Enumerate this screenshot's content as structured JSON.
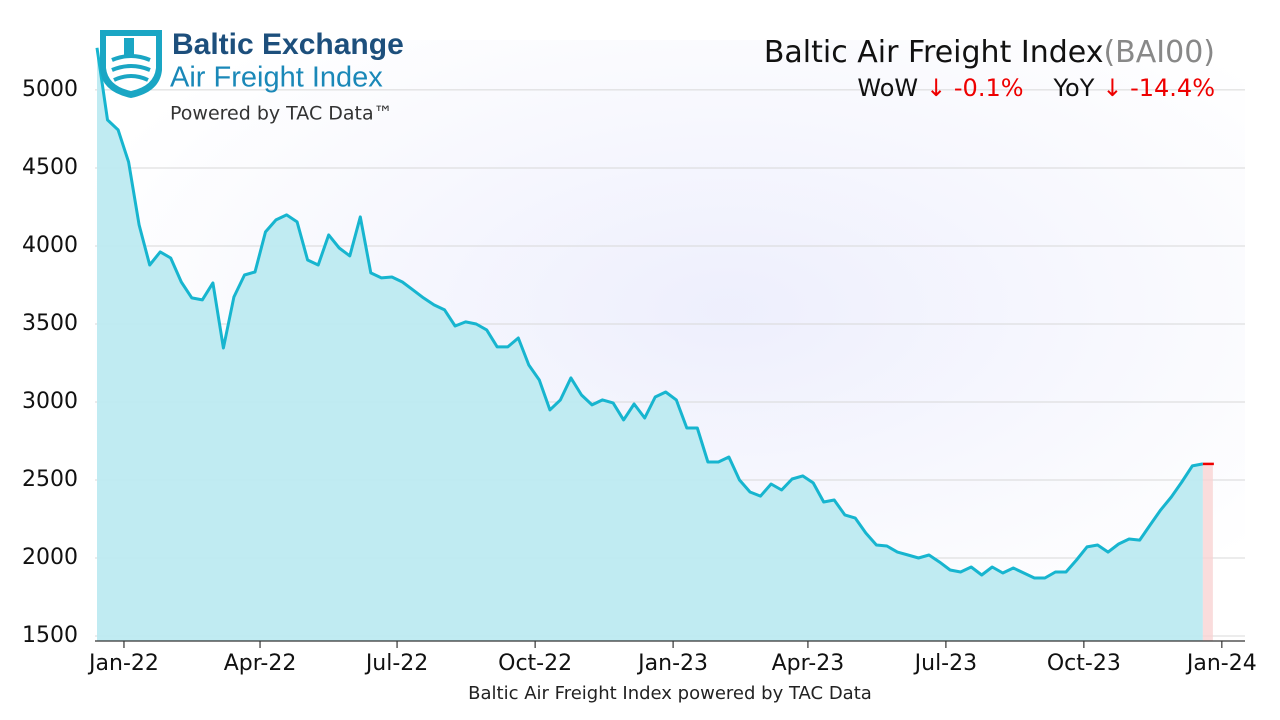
{
  "chart_data": {
    "type": "area",
    "logo_title": "Baltic Exchange",
    "logo_subtitle": "Air Freight Index",
    "logo_tagline": "Powered by TAC Data™",
    "title": "Baltic Air Freight Index",
    "title_code": "(BAI00)",
    "annotations": [
      {
        "label": "WoW",
        "value": "↓ -0.1%"
      },
      {
        "label": "YoY",
        "value": "↓ -14.4%"
      }
    ],
    "x_label": "Baltic Air Freight Index powered by TAC Data",
    "color": "#17b5cf",
    "fill_color": "#bdeaf1",
    "values": [
      5270,
      4808,
      4744,
      4538,
      4135,
      3878,
      3962,
      3923,
      3769,
      3667,
      3654,
      3763,
      3346,
      3673,
      3814,
      3833,
      4090,
      4167,
      4199,
      4154,
      3910,
      3878,
      4071,
      3987,
      3936,
      4186,
      3827,
      3795,
      3801,
      3769,
      3718,
      3667,
      3622,
      3590,
      3487,
      3513,
      3500,
      3462,
      3353,
      3353,
      3410,
      3237,
      3141,
      2949,
      3013,
      3154,
      3045,
      2981,
      3013,
      2994,
      2885,
      2987,
      2897,
      3032,
      3064,
      3013,
      2833,
      2833,
      2615,
      2615,
      2647,
      2500,
      2423,
      2397,
      2474,
      2436,
      2506,
      2526,
      2481,
      2359,
      2372,
      2276,
      2256,
      2160,
      2083,
      2077,
      2038,
      2019,
      2000,
      2019,
      1974,
      1923,
      1910,
      1942,
      1891,
      1942,
      1904,
      1936,
      1904,
      1872,
      1872,
      1910,
      1910,
      1987,
      2071,
      2083,
      2038,
      2090,
      2122,
      2115,
      2212,
      2308,
      2391,
      2487,
      2590,
      2603
    ],
    "xlim": [
      -0.19,
      109.0
    ],
    "xticks": [
      {
        "value": 2.56,
        "label": "Jan-22"
      },
      {
        "value": 15.48,
        "label": "Apr-22"
      },
      {
        "value": 28.49,
        "label": "Jul-22"
      },
      {
        "value": 41.6,
        "label": "Oct-22"
      },
      {
        "value": 54.7,
        "label": "Jan-23"
      },
      {
        "value": 67.5,
        "label": "Apr-23"
      },
      {
        "value": 80.6,
        "label": "Jul-23"
      },
      {
        "value": 93.7,
        "label": "Oct-23"
      },
      {
        "value": 106.8,
        "label": "Jan-24"
      }
    ],
    "ylim": [
      1468,
      5320
    ],
    "yticks": [
      1500,
      2000,
      2500,
      3000,
      3500,
      4000,
      4500,
      5000
    ],
    "grid": true
  }
}
